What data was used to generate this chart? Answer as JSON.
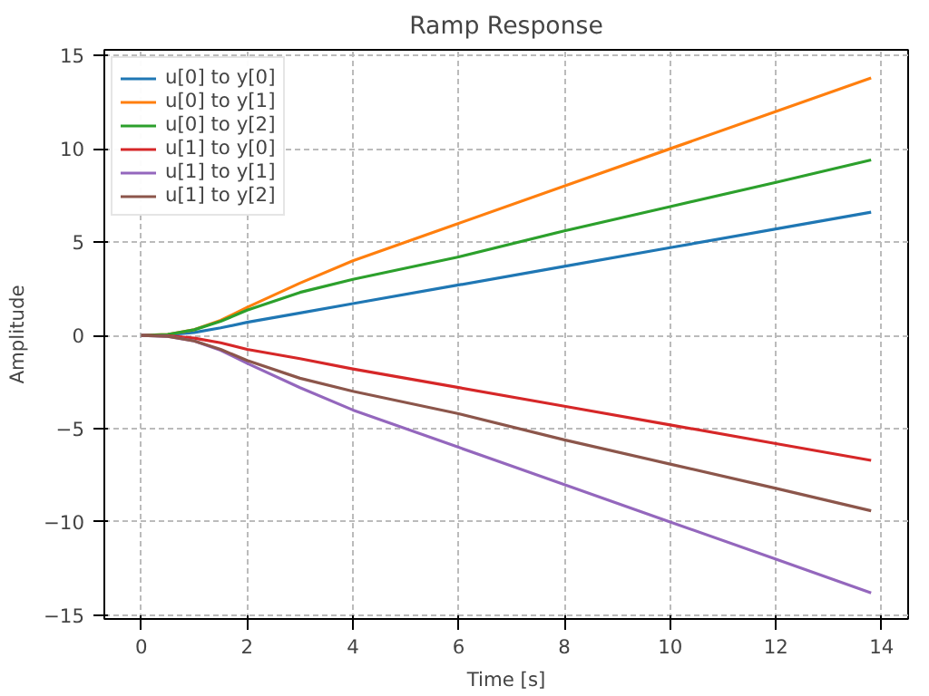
{
  "chart_data": {
    "type": "line",
    "title": "Ramp Response",
    "xlabel": "Time [s]",
    "ylabel": "Amplitude",
    "x": [
      0,
      0.5,
      1,
      1.5,
      2,
      3,
      4,
      6,
      8,
      10,
      12,
      13.8
    ],
    "xlim": [
      -0.7,
      14.5
    ],
    "ylim": [
      -15.2,
      15.3
    ],
    "xticks": [
      0,
      2,
      4,
      6,
      8,
      10,
      12,
      14
    ],
    "yticks": [
      -15,
      -10,
      -5,
      0,
      5,
      10,
      15
    ],
    "grid": true,
    "legend": "top left",
    "line_style": "solid",
    "marker": "none",
    "series": [
      {
        "name": "u[0] to y[0]",
        "color": "#1f77b4",
        "values": [
          0,
          0.03,
          0.15,
          0.4,
          0.7,
          1.2,
          1.7,
          2.7,
          3.7,
          4.7,
          5.7,
          6.6
        ]
      },
      {
        "name": "u[0] to y[1]",
        "color": "#ff7f0e",
        "values": [
          0,
          0.05,
          0.3,
          0.8,
          1.5,
          2.8,
          4.0,
          6.0,
          8.0,
          10.0,
          12.0,
          13.8
        ]
      },
      {
        "name": "u[0] to y[2]",
        "color": "#2ca02c",
        "values": [
          0,
          0.05,
          0.3,
          0.75,
          1.35,
          2.3,
          3.0,
          4.2,
          5.6,
          6.9,
          8.2,
          9.4
        ]
      },
      {
        "name": "u[1] to y[0]",
        "color": "#d62728",
        "values": [
          0,
          -0.03,
          -0.15,
          -0.4,
          -0.75,
          -1.25,
          -1.8,
          -2.8,
          -3.8,
          -4.8,
          -5.8,
          -6.7
        ]
      },
      {
        "name": "u[1] to y[1]",
        "color": "#9467bd",
        "values": [
          0,
          -0.05,
          -0.3,
          -0.8,
          -1.5,
          -2.8,
          -4.0,
          -6.0,
          -8.0,
          -10.0,
          -12.0,
          -13.8
        ]
      },
      {
        "name": "u[1] to y[2]",
        "color": "#8c564b",
        "values": [
          0,
          -0.05,
          -0.3,
          -0.75,
          -1.35,
          -2.3,
          -3.0,
          -4.2,
          -5.6,
          -6.9,
          -8.2,
          -9.4
        ]
      }
    ]
  }
}
